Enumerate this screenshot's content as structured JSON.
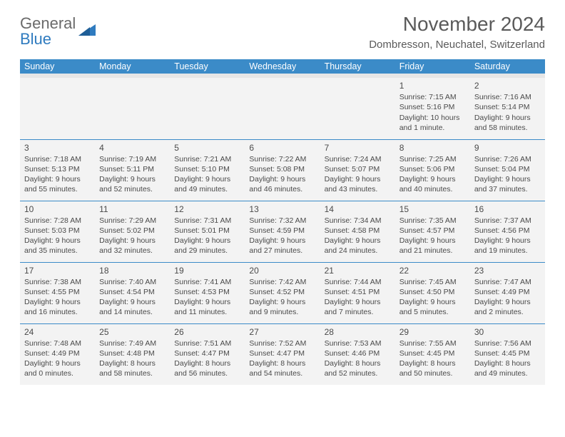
{
  "brand": {
    "line1": "General",
    "line2": "Blue"
  },
  "title": "November 2024",
  "subtitle": "Dombresson, Neuchatel, Switzerland",
  "dayHeaders": [
    "Sunday",
    "Monday",
    "Tuesday",
    "Wednesday",
    "Thursday",
    "Friday",
    "Saturday"
  ],
  "colors": {
    "header_bg": "#3b8bc8",
    "header_text": "#ffffff",
    "cell_bg": "#f3f3f3",
    "border": "#3b8bc8",
    "text": "#4a4a4a",
    "brand_gray": "#6a6a6a",
    "brand_blue": "#2f7bbf"
  },
  "weeks": [
    [
      null,
      null,
      null,
      null,
      null,
      {
        "n": "1",
        "sr": "7:15 AM",
        "ss": "5:16 PM",
        "dl": "10 hours and 1 minute."
      },
      {
        "n": "2",
        "sr": "7:16 AM",
        "ss": "5:14 PM",
        "dl": "9 hours and 58 minutes."
      }
    ],
    [
      {
        "n": "3",
        "sr": "7:18 AM",
        "ss": "5:13 PM",
        "dl": "9 hours and 55 minutes."
      },
      {
        "n": "4",
        "sr": "7:19 AM",
        "ss": "5:11 PM",
        "dl": "9 hours and 52 minutes."
      },
      {
        "n": "5",
        "sr": "7:21 AM",
        "ss": "5:10 PM",
        "dl": "9 hours and 49 minutes."
      },
      {
        "n": "6",
        "sr": "7:22 AM",
        "ss": "5:08 PM",
        "dl": "9 hours and 46 minutes."
      },
      {
        "n": "7",
        "sr": "7:24 AM",
        "ss": "5:07 PM",
        "dl": "9 hours and 43 minutes."
      },
      {
        "n": "8",
        "sr": "7:25 AM",
        "ss": "5:06 PM",
        "dl": "9 hours and 40 minutes."
      },
      {
        "n": "9",
        "sr": "7:26 AM",
        "ss": "5:04 PM",
        "dl": "9 hours and 37 minutes."
      }
    ],
    [
      {
        "n": "10",
        "sr": "7:28 AM",
        "ss": "5:03 PM",
        "dl": "9 hours and 35 minutes."
      },
      {
        "n": "11",
        "sr": "7:29 AM",
        "ss": "5:02 PM",
        "dl": "9 hours and 32 minutes."
      },
      {
        "n": "12",
        "sr": "7:31 AM",
        "ss": "5:01 PM",
        "dl": "9 hours and 29 minutes."
      },
      {
        "n": "13",
        "sr": "7:32 AM",
        "ss": "4:59 PM",
        "dl": "9 hours and 27 minutes."
      },
      {
        "n": "14",
        "sr": "7:34 AM",
        "ss": "4:58 PM",
        "dl": "9 hours and 24 minutes."
      },
      {
        "n": "15",
        "sr": "7:35 AM",
        "ss": "4:57 PM",
        "dl": "9 hours and 21 minutes."
      },
      {
        "n": "16",
        "sr": "7:37 AM",
        "ss": "4:56 PM",
        "dl": "9 hours and 19 minutes."
      }
    ],
    [
      {
        "n": "17",
        "sr": "7:38 AM",
        "ss": "4:55 PM",
        "dl": "9 hours and 16 minutes."
      },
      {
        "n": "18",
        "sr": "7:40 AM",
        "ss": "4:54 PM",
        "dl": "9 hours and 14 minutes."
      },
      {
        "n": "19",
        "sr": "7:41 AM",
        "ss": "4:53 PM",
        "dl": "9 hours and 11 minutes."
      },
      {
        "n": "20",
        "sr": "7:42 AM",
        "ss": "4:52 PM",
        "dl": "9 hours and 9 minutes."
      },
      {
        "n": "21",
        "sr": "7:44 AM",
        "ss": "4:51 PM",
        "dl": "9 hours and 7 minutes."
      },
      {
        "n": "22",
        "sr": "7:45 AM",
        "ss": "4:50 PM",
        "dl": "9 hours and 5 minutes."
      },
      {
        "n": "23",
        "sr": "7:47 AM",
        "ss": "4:49 PM",
        "dl": "9 hours and 2 minutes."
      }
    ],
    [
      {
        "n": "24",
        "sr": "7:48 AM",
        "ss": "4:49 PM",
        "dl": "9 hours and 0 minutes."
      },
      {
        "n": "25",
        "sr": "7:49 AM",
        "ss": "4:48 PM",
        "dl": "8 hours and 58 minutes."
      },
      {
        "n": "26",
        "sr": "7:51 AM",
        "ss": "4:47 PM",
        "dl": "8 hours and 56 minutes."
      },
      {
        "n": "27",
        "sr": "7:52 AM",
        "ss": "4:47 PM",
        "dl": "8 hours and 54 minutes."
      },
      {
        "n": "28",
        "sr": "7:53 AM",
        "ss": "4:46 PM",
        "dl": "8 hours and 52 minutes."
      },
      {
        "n": "29",
        "sr": "7:55 AM",
        "ss": "4:45 PM",
        "dl": "8 hours and 50 minutes."
      },
      {
        "n": "30",
        "sr": "7:56 AM",
        "ss": "4:45 PM",
        "dl": "8 hours and 49 minutes."
      }
    ]
  ],
  "labels": {
    "sunrise": "Sunrise: ",
    "sunset": "Sunset: ",
    "daylight": "Daylight: "
  }
}
